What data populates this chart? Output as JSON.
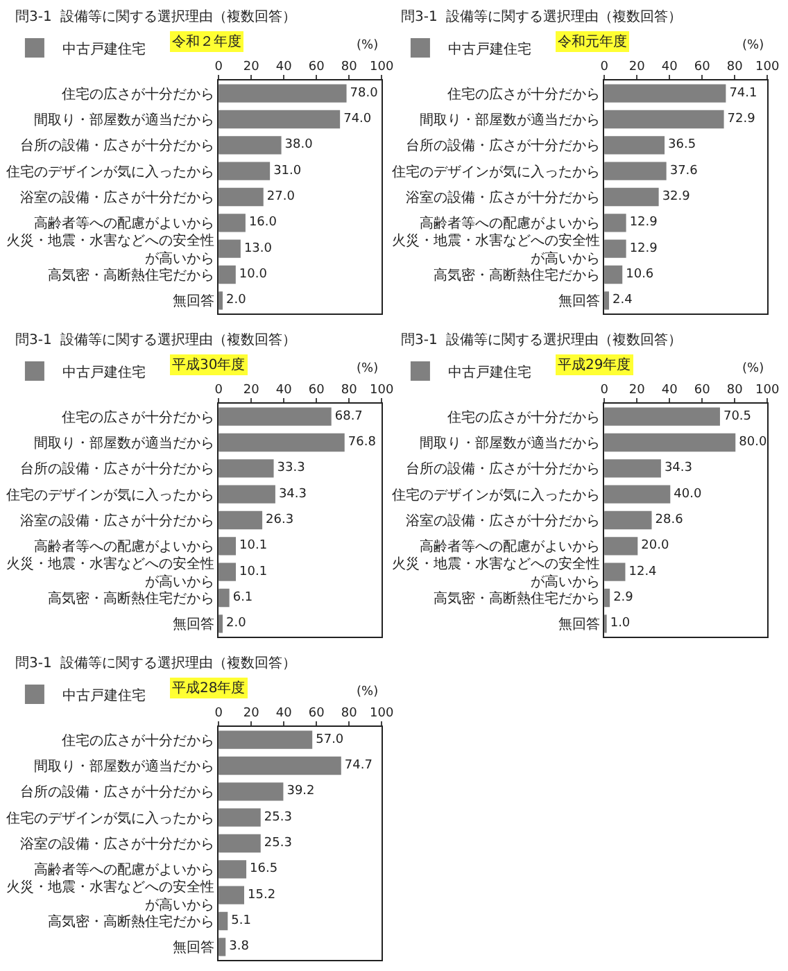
{
  "chart_data": [
    {
      "type": "bar",
      "orientation": "horizontal",
      "title": "問3-1  設備等に関する選択理由（複数回答）",
      "subtitle": "令和２年度",
      "xlabel": "(%)",
      "legend": "top left",
      "categories": [
        "住宅の広さが十分だから",
        "間取り・部屋数が適当だから",
        "台所の設備・広さが十分だから",
        "住宅のデザインが気に入ったから",
        "浴室の設備・広さが十分だから",
        "高齢者等への配慮がよいから",
        "火災・地震・水害などへの安全性が高いから",
        "高気密・高断熱住宅だから",
        "無回答"
      ],
      "series": [
        {
          "name": "中古戸建住宅",
          "color": "#808080",
          "values": [
            78.0,
            74.0,
            38.0,
            31.0,
            27.0,
            16.0,
            13.0,
            10.0,
            2.0
          ],
          "value_labels": [
            "78.0",
            "74.0",
            "38.0",
            "31.0",
            "27.0",
            "16.0",
            "13.0",
            "10.0",
            "2.0"
          ]
        }
      ],
      "xlim": [
        0,
        100
      ],
      "xticks": [
        0,
        20,
        40,
        60,
        80,
        100
      ]
    },
    {
      "type": "bar",
      "orientation": "horizontal",
      "title": "問3-1  設備等に関する選択理由（複数回答）",
      "subtitle": "令和元年度",
      "xlabel": "(%)",
      "legend": "top left",
      "categories": [
        "住宅の広さが十分だから",
        "間取り・部屋数が適当だから",
        "台所の設備・広さが十分だから",
        "住宅のデザインが気に入ったから",
        "浴室の設備・広さが十分だから",
        "高齢者等への配慮がよいから",
        "火災・地震・水害などへの安全性が高いから",
        "高気密・高断熱住宅だから",
        "無回答"
      ],
      "series": [
        {
          "name": "中古戸建住宅",
          "color": "#808080",
          "values": [
            74.1,
            72.9,
            36.5,
            37.6,
            32.9,
            12.9,
            12.9,
            10.6,
            2.4
          ],
          "value_labels": [
            "74.1",
            "72.9",
            "36.5",
            "37.6",
            "32.9",
            "12.9",
            "12.9",
            "10.6",
            "2.4"
          ]
        }
      ],
      "xlim": [
        0,
        100
      ],
      "xticks": [
        0,
        20,
        40,
        60,
        80,
        100
      ]
    },
    {
      "type": "bar",
      "orientation": "horizontal",
      "title": "問3-1  設備等に関する選択理由（複数回答）",
      "subtitle": "平成30年度",
      "xlabel": "(%)",
      "legend": "top left",
      "categories": [
        "住宅の広さが十分だから",
        "間取り・部屋数が適当だから",
        "台所の設備・広さが十分だから",
        "住宅のデザインが気に入ったから",
        "浴室の設備・広さが十分だから",
        "高齢者等への配慮がよいから",
        "火災・地震・水害などへの安全性が高いから",
        "高気密・高断熱住宅だから",
        "無回答"
      ],
      "series": [
        {
          "name": "中古戸建住宅",
          "color": "#808080",
          "values": [
            68.7,
            76.8,
            33.3,
            34.3,
            26.3,
            10.1,
            10.1,
            6.1,
            2.0
          ],
          "value_labels": [
            "68.7",
            "76.8",
            "33.3",
            "34.3",
            "26.3",
            "10.1",
            "10.1",
            "6.1",
            "2.0"
          ]
        }
      ],
      "xlim": [
        0,
        100
      ],
      "xticks": [
        0,
        20,
        40,
        60,
        80,
        100
      ]
    },
    {
      "type": "bar",
      "orientation": "horizontal",
      "title": "問3-1  設備等に関する選択理由（複数回答）",
      "subtitle": "平成29年度",
      "xlabel": "(%)",
      "legend": "top left",
      "categories": [
        "住宅の広さが十分だから",
        "間取り・部屋数が適当だから",
        "台所の設備・広さが十分だから",
        "住宅のデザインが気に入ったから",
        "浴室の設備・広さが十分だから",
        "高齢者等への配慮がよいから",
        "火災・地震・水害などへの安全性が高いから",
        "高気密・高断熱住宅だから",
        "無回答"
      ],
      "series": [
        {
          "name": "中古戸建住宅",
          "color": "#808080",
          "values": [
            70.5,
            80.0,
            34.3,
            40.0,
            28.6,
            20.0,
            12.4,
            2.9,
            1.0
          ],
          "value_labels": [
            "70.5",
            "80.0",
            "34.3",
            "40.0",
            "28.6",
            "20.0",
            "12.4",
            "2.9",
            "1.0"
          ]
        }
      ],
      "xlim": [
        0,
        100
      ],
      "xticks": [
        0,
        20,
        40,
        60,
        80,
        100
      ]
    },
    {
      "type": "bar",
      "orientation": "horizontal",
      "title": "問3-1  設備等に関する選択理由（複数回答）",
      "subtitle": "平成28年度",
      "xlabel": "(%)",
      "legend": "top left",
      "categories": [
        "住宅の広さが十分だから",
        "間取り・部屋数が適当だから",
        "台所の設備・広さが十分だから",
        "住宅のデザインが気に入ったから",
        "浴室の設備・広さが十分だから",
        "高齢者等への配慮がよいから",
        "火災・地震・水害などへの安全性が高いから",
        "高気密・高断熱住宅だから",
        "無回答"
      ],
      "series": [
        {
          "name": "中古戸建住宅",
          "color": "#808080",
          "values": [
            57.0,
            74.7,
            39.2,
            25.3,
            25.3,
            16.5,
            15.2,
            5.1,
            3.8
          ],
          "value_labels": [
            "57.0",
            "74.7",
            "39.2",
            "25.3",
            "25.3",
            "16.5",
            "15.2",
            "5.1",
            "3.8"
          ]
        }
      ],
      "xlim": [
        0,
        100
      ],
      "xticks": [
        0,
        20,
        40,
        60,
        80,
        100
      ]
    }
  ]
}
